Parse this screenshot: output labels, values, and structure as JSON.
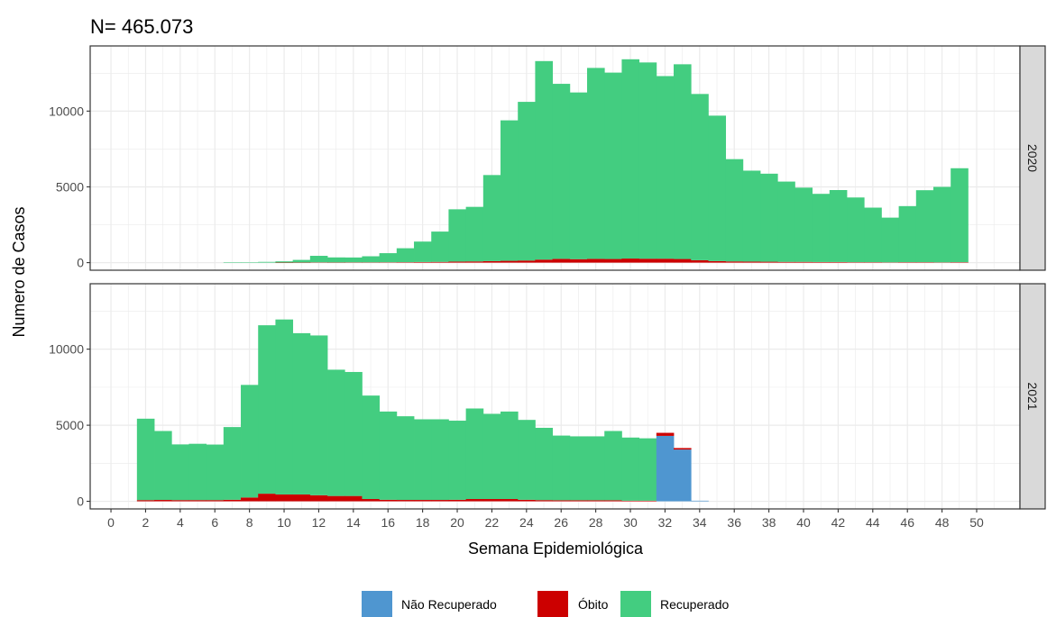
{
  "chart_data": {
    "type": "bar",
    "stacked": true,
    "title": "N= 465.073",
    "xlabel": "Semana Epidemiológica",
    "ylabel": "Numero de Casos",
    "x_ticks": [
      "0",
      "2",
      "4",
      "6",
      "8",
      "10",
      "12",
      "14",
      "16",
      "18",
      "20",
      "22",
      "24",
      "26",
      "28",
      "30",
      "32",
      "34",
      "36",
      "38",
      "40",
      "42",
      "44",
      "46",
      "48",
      "50"
    ],
    "y_ticks": [
      "0",
      "5000",
      "10000"
    ],
    "xlim": [
      -1.2,
      52.5
    ],
    "ylim": [
      -500,
      14300
    ],
    "grid": true,
    "legend_position": "bottom",
    "colors": {
      "nao_recuperado": "#4F96D0",
      "obito": "#CC0000",
      "recuperado": "#43CD80",
      "panel_border": "#333333",
      "strip_fill": "#D9D9D9",
      "grid": "#EBEBEB"
    },
    "legend": [
      {
        "key": "nao_recuperado",
        "label": "Não Recuperado"
      },
      {
        "key": "obito",
        "label": "Óbito"
      },
      {
        "key": "recuperado",
        "label": "Recuperado"
      }
    ],
    "panels": [
      {
        "strip": "2020",
        "weeks": [
          7,
          8,
          9,
          10,
          11,
          12,
          13,
          14,
          15,
          16,
          17,
          18,
          19,
          20,
          21,
          22,
          23,
          24,
          25,
          26,
          27,
          28,
          29,
          30,
          31,
          32,
          33,
          34,
          35,
          36,
          37,
          38,
          39,
          40,
          41,
          42,
          43,
          44,
          45,
          46,
          47,
          48,
          49
        ],
        "nao_recuperado": [
          0,
          0,
          0,
          0,
          0,
          0,
          0,
          0,
          0,
          0,
          0,
          0,
          0,
          0,
          0,
          0,
          0,
          0,
          0,
          0,
          0,
          0,
          0,
          0,
          0,
          0,
          0,
          0,
          0,
          0,
          0,
          0,
          0,
          0,
          0,
          0,
          0,
          0,
          0,
          0,
          0,
          0,
          0
        ],
        "obito": [
          0,
          0,
          0,
          5,
          10,
          20,
          15,
          20,
          20,
          25,
          30,
          40,
          50,
          70,
          80,
          100,
          120,
          140,
          200,
          250,
          230,
          250,
          240,
          270,
          260,
          260,
          240,
          160,
          100,
          80,
          70,
          60,
          50,
          50,
          40,
          40,
          30,
          30,
          20,
          30,
          30,
          20,
          30
        ],
        "recuperado": [
          30,
          30,
          50,
          80,
          170,
          430,
          330,
          320,
          400,
          600,
          920,
          1350,
          2000,
          3450,
          3600,
          5680,
          9270,
          10470,
          13100,
          11550,
          11000,
          12600,
          12300,
          13150,
          12950,
          12050,
          12850,
          10970,
          9600,
          6750,
          6000,
          5810,
          5300,
          4900,
          4500,
          4750,
          4270,
          3600,
          2950,
          3700,
          4750,
          4980,
          6200
        ]
      },
      {
        "strip": "2021",
        "weeks": [
          2,
          3,
          4,
          5,
          6,
          7,
          8,
          9,
          10,
          11,
          12,
          13,
          14,
          15,
          16,
          17,
          18,
          19,
          20,
          21,
          22,
          23,
          24,
          25,
          26,
          27,
          28,
          29,
          30,
          31,
          32,
          33,
          34
        ],
        "nao_recuperado": [
          0,
          0,
          0,
          0,
          0,
          0,
          0,
          0,
          0,
          0,
          0,
          0,
          0,
          0,
          0,
          0,
          0,
          0,
          0,
          0,
          0,
          0,
          0,
          0,
          0,
          0,
          0,
          0,
          0,
          0,
          4300,
          3400,
          40
        ],
        "obito": [
          80,
          90,
          80,
          80,
          80,
          100,
          250,
          500,
          450,
          450,
          400,
          350,
          350,
          150,
          100,
          90,
          90,
          90,
          100,
          150,
          150,
          150,
          100,
          80,
          70,
          70,
          70,
          70,
          40,
          40,
          200,
          100,
          0
        ],
        "recuperado": [
          5350,
          4530,
          3660,
          3700,
          3650,
          4780,
          7400,
          11070,
          11500,
          10600,
          10500,
          8300,
          8150,
          6800,
          5800,
          5500,
          5300,
          5300,
          5200,
          5950,
          5600,
          5750,
          5250,
          4750,
          4250,
          4200,
          4200,
          4550,
          4150,
          4100,
          0,
          0,
          0
        ]
      }
    ]
  }
}
